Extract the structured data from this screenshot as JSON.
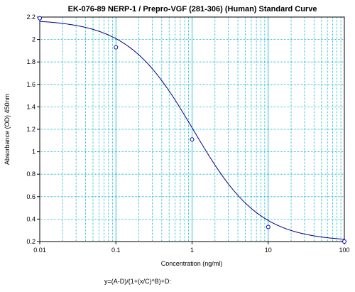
{
  "chart_data": {
    "type": "scatter",
    "title": "EK-076-89 NERP-1 / Prepro-VGF (281-306) (Human) Standard Curve",
    "xlabel": "Concentration (ng/ml)",
    "ylabel": "Absorbance (OD) 450nm",
    "xscale": "log",
    "xlim": [
      0.01,
      100
    ],
    "ylim": [
      0.2,
      2.2
    ],
    "grid": true,
    "x_ticks": [
      0.01,
      0.1,
      1,
      10,
      100
    ],
    "x_tick_labels": [
      "0.01",
      "0.1",
      "1",
      "10",
      "100"
    ],
    "y_ticks": [
      0.2,
      0.4,
      0.6,
      0.8,
      1.0,
      1.2,
      1.4,
      1.6,
      1.8,
      2.0,
      2.2
    ],
    "y_tick_labels": [
      "0.2",
      "0.4",
      "0.6",
      "0.8",
      "1",
      "1.2",
      "1.4",
      "1.6",
      "1.8",
      "2",
      "2.2"
    ],
    "series": [
      {
        "type": "scatter",
        "x": [
          0.01,
          0.1,
          1,
          10,
          100
        ],
        "y": [
          2.19,
          1.93,
          1.11,
          0.33,
          0.2
        ]
      },
      {
        "type": "line",
        "fit": "4PL",
        "params": {
          "A": 2.18,
          "B": 1.0,
          "C": 1.05,
          "D": 0.2
        }
      }
    ],
    "colors": {
      "grid": "#00b0c8",
      "curve": "#000080",
      "points": "#0000c0"
    },
    "equation": "y=(A-D)/(1+(x/C)^B)+D:"
  }
}
